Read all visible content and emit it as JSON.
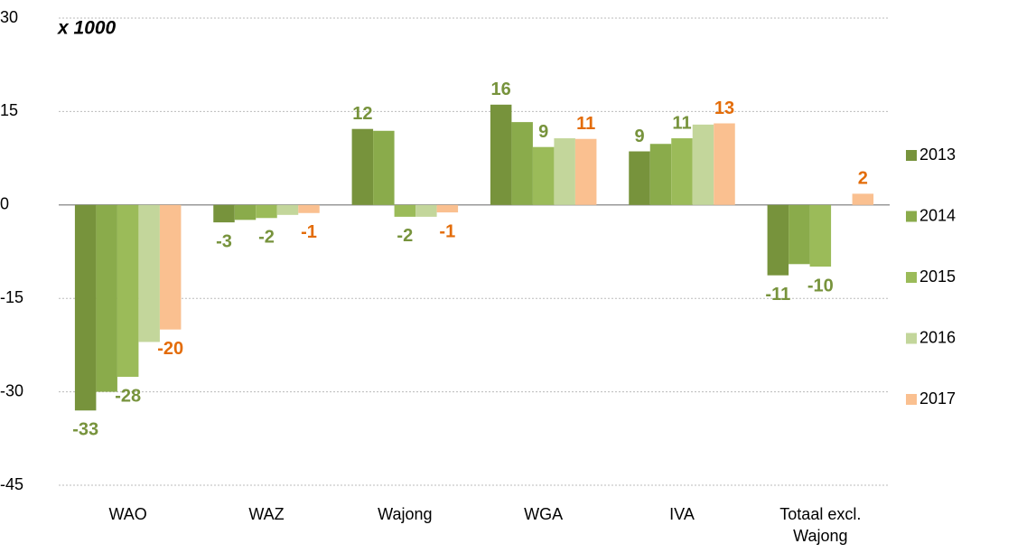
{
  "chart_data": {
    "type": "bar",
    "title": "x 1000",
    "categories": [
      "WAO",
      "WAZ",
      "Wajong",
      "WGA",
      "IVA",
      "Totaal excl. Wajong"
    ],
    "ylim": [
      -45,
      30
    ],
    "yticks": [
      30,
      15,
      0,
      -15,
      -30,
      -45
    ],
    "grid": true,
    "legend": "right",
    "series": [
      {
        "name": "2013",
        "color": "#77933c",
        "label_color": "#77933c",
        "values": [
          -33,
          -2.8,
          12.2,
          16.1,
          8.6,
          -11.3
        ],
        "value_labels": [
          -33,
          -3,
          12,
          16,
          9,
          -11
        ]
      },
      {
        "name": "2014",
        "color": "#8aab4b",
        "label_color": "#77933c",
        "values": [
          -30,
          -2.4,
          11.9,
          13.3,
          9.8,
          -9.5
        ],
        "value_labels": [
          null,
          null,
          null,
          null,
          null,
          null
        ]
      },
      {
        "name": "2015",
        "color": "#9bbb59",
        "label_color": "#77933c",
        "values": [
          -27.6,
          -2.1,
          -1.9,
          9.3,
          10.7,
          -9.9
        ],
        "value_labels": [
          -28,
          -2,
          -2,
          9,
          11,
          -10
        ]
      },
      {
        "name": "2016",
        "color": "#c3d69b",
        "label_color": "#77933c",
        "values": [
          -22,
          -1.6,
          -1.9,
          10.7,
          12.9,
          null
        ],
        "value_labels": [
          null,
          null,
          null,
          null,
          null,
          null
        ]
      },
      {
        "name": "2017",
        "color": "#fac090",
        "label_color": "#e36c09",
        "values": [
          -20,
          -1.3,
          -1.2,
          10.6,
          13.1,
          1.8
        ],
        "value_labels": [
          -20,
          -1,
          -1,
          11,
          13,
          2
        ]
      }
    ]
  }
}
